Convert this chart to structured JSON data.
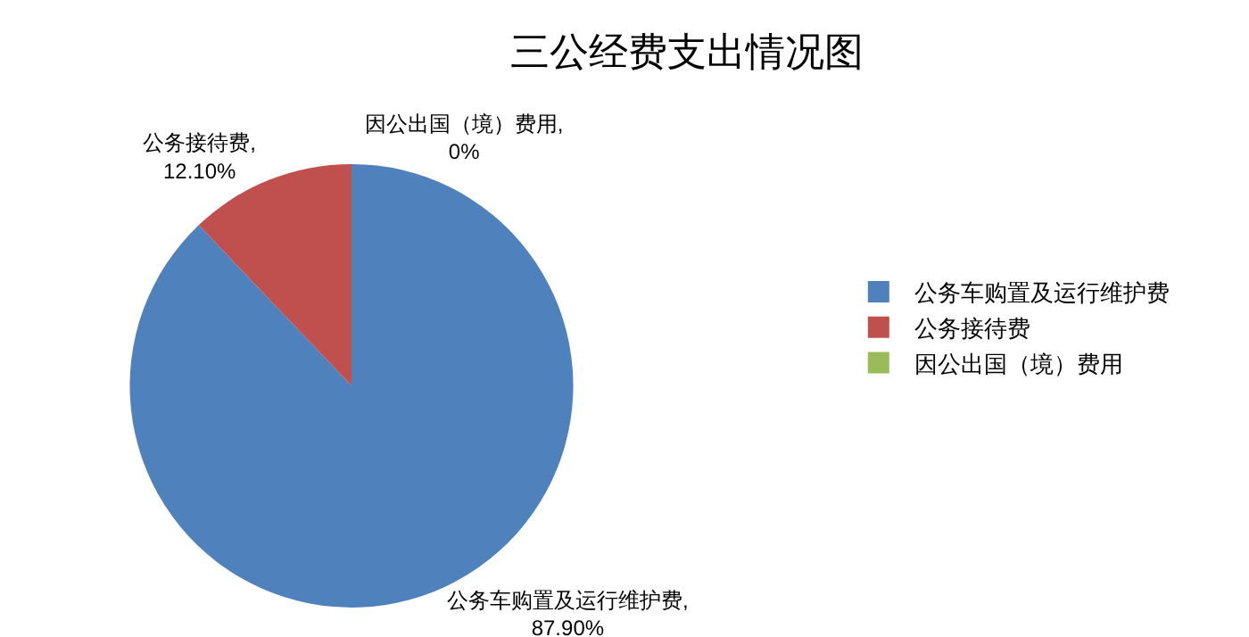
{
  "chart_data": {
    "type": "pie",
    "title": "三公经费支出情况图",
    "categories": [
      "公务车购置及运行维护费",
      "公务接待费",
      "因公出国（境）费用"
    ],
    "values": [
      87.9,
      12.1,
      0
    ],
    "colors": [
      "#4f81bd",
      "#c0504d",
      "#9bbb59"
    ],
    "value_labels": [
      "公务车购置及运行维护费,87.90%",
      "公务接待费,12.10%",
      "因公出国（境）费用,0%"
    ],
    "legend": "right"
  }
}
